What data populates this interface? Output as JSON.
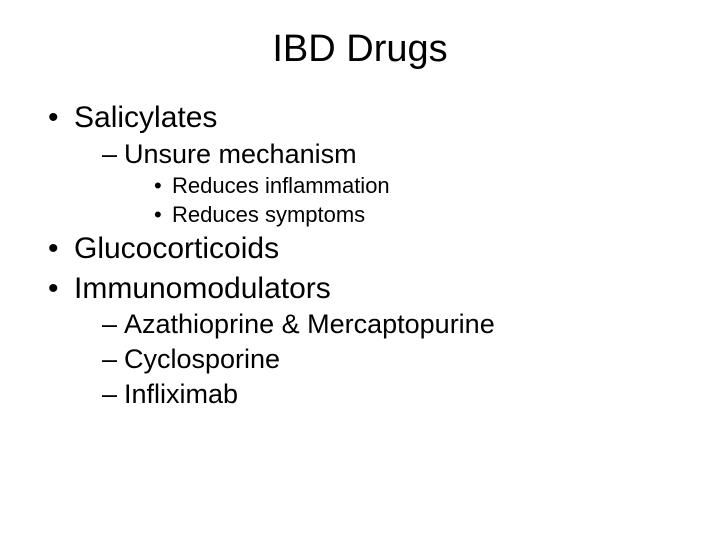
{
  "slide": {
    "title": "IBD Drugs",
    "background_color": "#ffffff",
    "text_color": "#000000",
    "title_fontsize": 38,
    "body_fontsize_l1": 30,
    "body_fontsize_l2": 27,
    "body_fontsize_l3": 22,
    "font_family": "Arial",
    "bullets": {
      "item1": "Salicylates",
      "item1_sub1": "Unsure mechanism",
      "item1_sub1_a": "Reduces inflammation",
      "item1_sub1_b": "Reduces symptoms",
      "item2": "Glucocorticoids",
      "item3": "Immunomodulators",
      "item3_sub1": "Azathioprine & Mercaptopurine",
      "item3_sub2": "Cyclosporine",
      "item3_sub3": "Infliximab"
    }
  }
}
